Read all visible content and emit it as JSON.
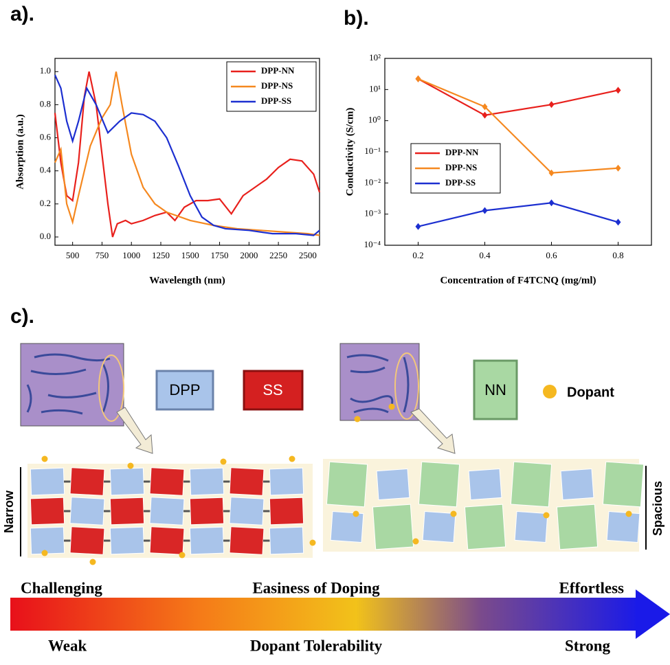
{
  "chart_data": [
    {
      "type": "line",
      "panel": "a).",
      "xlabel": "Wavelength (nm)",
      "ylabel": "Absorption (a.u.)",
      "xlim": [
        350,
        2600
      ],
      "xticks": [
        500,
        750,
        1000,
        1250,
        1500,
        1750,
        2000,
        2250,
        2500
      ],
      "ylim": [
        -0.05,
        1.08
      ],
      "yticks": [
        {
          "value": 0,
          "label": "0.0"
        },
        0.2,
        0.4,
        0.6,
        0.8,
        {
          "value": 1,
          "label": "1.0"
        }
      ],
      "legend": "upper right",
      "series": [
        {
          "name": "DPP-NN",
          "color": "#e8201c",
          "x": [
            350,
            400,
            450,
            500,
            550,
            600,
            640,
            700,
            750,
            800,
            840,
            880,
            950,
            1000,
            1100,
            1200,
            1300,
            1370,
            1450,
            1550,
            1650,
            1750,
            1850,
            1950,
            2050,
            2150,
            2250,
            2350,
            2450,
            2550,
            2600
          ],
          "values": [
            0.75,
            0.45,
            0.25,
            0.22,
            0.45,
            0.85,
            1.0,
            0.8,
            0.5,
            0.2,
            0.0,
            0.08,
            0.1,
            0.08,
            0.1,
            0.13,
            0.15,
            0.1,
            0.18,
            0.22,
            0.22,
            0.23,
            0.14,
            0.25,
            0.3,
            0.35,
            0.42,
            0.47,
            0.46,
            0.38,
            0.27
          ]
        },
        {
          "name": "DPP-NS",
          "color": "#f5881f",
          "x": [
            350,
            400,
            450,
            500,
            550,
            650,
            750,
            820,
            870,
            920,
            1000,
            1100,
            1200,
            1300,
            1500,
            1700,
            1900,
            2100,
            2300,
            2500,
            2600
          ],
          "values": [
            0.45,
            0.53,
            0.2,
            0.09,
            0.25,
            0.55,
            0.72,
            0.8,
            1.0,
            0.8,
            0.5,
            0.3,
            0.2,
            0.15,
            0.1,
            0.07,
            0.05,
            0.04,
            0.03,
            0.02,
            0.01
          ]
        },
        {
          "name": "DPP-SS",
          "color": "#1c2fd0",
          "x": [
            350,
            400,
            450,
            500,
            550,
            620,
            700,
            800,
            900,
            1000,
            1100,
            1200,
            1300,
            1400,
            1500,
            1600,
            1700,
            1800,
            2000,
            2200,
            2400,
            2550,
            2600
          ],
          "values": [
            0.98,
            0.9,
            0.7,
            0.58,
            0.7,
            0.9,
            0.8,
            0.63,
            0.7,
            0.75,
            0.74,
            0.7,
            0.6,
            0.43,
            0.25,
            0.12,
            0.07,
            0.05,
            0.04,
            0.02,
            0.02,
            0.01,
            0.04
          ]
        }
      ]
    },
    {
      "type": "line",
      "panel": "b).",
      "xlabel": "Concentration of F4TCNQ (mg/ml)",
      "ylabel": "Conductivity (S/cm)",
      "log_y": true,
      "xlim": [
        0.1,
        0.9
      ],
      "xticks": [
        0.2,
        0.4,
        0.6,
        0.8
      ],
      "ylim": [
        0.0001,
        100
      ],
      "yticks": [
        {
          "value": 0.0001,
          "label": "10⁻⁴"
        },
        {
          "value": 0.001,
          "label": "10⁻³"
        },
        {
          "value": 0.01,
          "label": "10⁻²"
        },
        {
          "value": 0.1,
          "label": "10⁻¹"
        },
        {
          "value": 1,
          "label": "10⁰"
        },
        {
          "value": 10,
          "label": "10¹"
        },
        {
          "value": 100,
          "label": "10²"
        }
      ],
      "legend": "center left",
      "x": [
        0.2,
        0.4,
        0.6,
        0.8
      ],
      "series": [
        {
          "name": "DPP-NN",
          "color": "#e8201c",
          "values": [
            22,
            1.5,
            3.3,
            9.5
          ]
        },
        {
          "name": "DPP-NS",
          "color": "#f5881f",
          "values": [
            22,
            2.8,
            0.021,
            0.03
          ]
        },
        {
          "name": "DPP-SS",
          "color": "#1c2fd0",
          "values": [
            0.0004,
            0.0013,
            0.0023,
            0.00055
          ]
        }
      ]
    }
  ],
  "diagram": {
    "panel": "c).",
    "blocks": [
      "DPP",
      "SS",
      "NN"
    ],
    "dopant": "Dopant",
    "narrow": "Narrow",
    "spacious": "Spacious",
    "top": [
      "Challenging",
      "Easiness of Doping",
      "Effortless"
    ],
    "bottom": [
      "Weak",
      "Dopant Tolerability",
      "Strong"
    ]
  }
}
